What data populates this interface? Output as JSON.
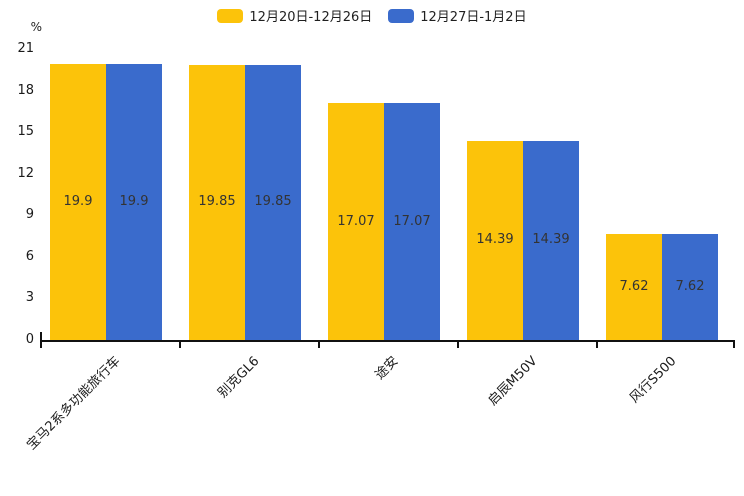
{
  "chart_data": {
    "type": "bar",
    "title": "",
    "unit_label": "%",
    "categories": [
      "宝马2系多功能旅行车",
      "别克GL6",
      "途安",
      "启辰M50V",
      "风行S500"
    ],
    "series": [
      {
        "name": "12月20日-12月26日",
        "color": "#FCC30A",
        "values": [
          19.9,
          19.85,
          17.07,
          14.39,
          7.62
        ]
      },
      {
        "name": "12月27日-1月2日",
        "color": "#3A6BCC",
        "values": [
          19.9,
          19.85,
          17.07,
          14.39,
          7.62
        ]
      }
    ],
    "ylim": [
      0,
      21
    ],
    "yticks": [
      0,
      3,
      6,
      9,
      12,
      15,
      18,
      21
    ],
    "legend_position": "top",
    "grid": false,
    "value_label_position": "inside-center",
    "axis_color": "#111111",
    "value_label_color": "#333333"
  }
}
